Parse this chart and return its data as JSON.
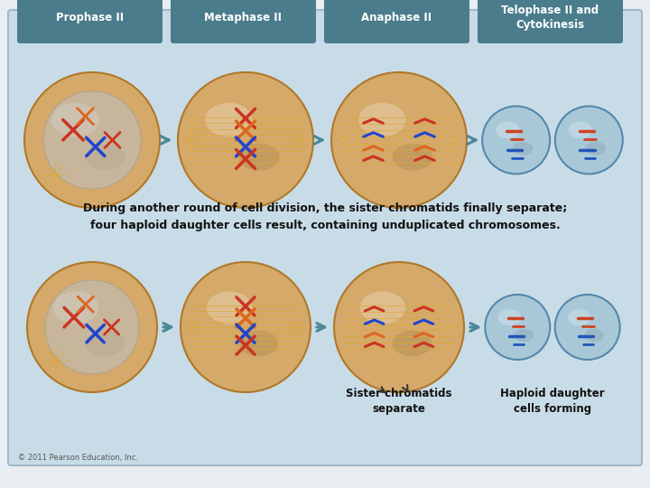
{
  "background_color": "#c8dce8",
  "outer_bg_color": "#e8eef2",
  "header_box_color": "#4a7c8c",
  "header_text_color": "#ffffff",
  "headers": [
    "Prophase II",
    "Metaphase II",
    "Anaphase II",
    "Telophase II and\nCytokinesis"
  ],
  "description_text": "During another round of cell division, the sister chromatids finally separate;\nfour haploid daughter cells result, containing unduplicated chromosomes.",
  "label1": "Sister chromatids\nseparate",
  "label2": "Haploid daughter\ncells forming",
  "copyright": "© 2011 Pearson Education, Inc.",
  "cell_color": "#d4a96a",
  "cell_edge": "#b07828",
  "cell_highlight": "#e8c88a",
  "cell_shadow": "#a07828",
  "nuc_color": "#b8c8d8",
  "chr_red": "#cc3322",
  "chr_blue": "#2244cc",
  "chr_orange": "#dd6622",
  "centrosome_color": "#ffcc00",
  "spindle_color": "#ddaa33",
  "arrow_color": "#4a8898",
  "telophase_cell_color": "#a8c8d8",
  "telophase_chr_red": "#cc4422",
  "telophase_chr_blue": "#2255bb"
}
